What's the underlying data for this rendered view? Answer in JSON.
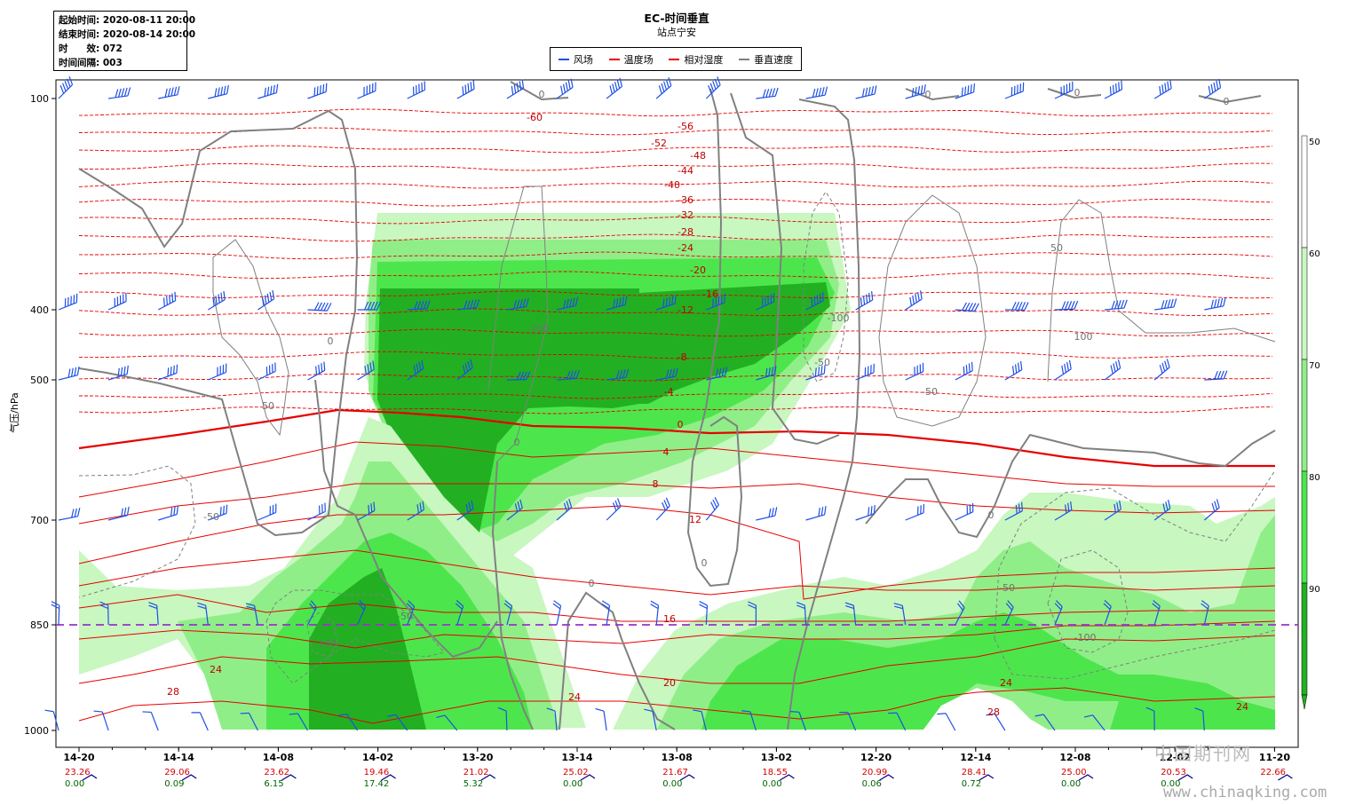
{
  "info": {
    "start": "起始时间: 2020-08-11 20:00",
    "end": "结束时间: 2020-08-14 20:00",
    "lead": "时　　效: 072",
    "interval": "时间间隔: 003"
  },
  "title": "EC-时间垂直",
  "subtitle": "站点宁安",
  "legend": [
    {
      "label": "风场",
      "color": "#1e50e6"
    },
    {
      "label": "温度场",
      "color": "#e60000"
    },
    {
      "label": "相对湿度",
      "color": "#e60000"
    },
    {
      "label": "垂直速度",
      "color": "#808080"
    }
  ],
  "watermark": "中国期刊网",
  "watermark_url": "www.chinaqking.com",
  "chart_data": {
    "type": "heatmap",
    "ylabel": "气压/hPa",
    "y_ticks": [
      100,
      400,
      500,
      700,
      850,
      1000
    ],
    "x_ticks": [
      "14-20",
      "14-14",
      "14-08",
      "14-02",
      "13-20",
      "13-14",
      "13-08",
      "13-02",
      "12-20",
      "12-14",
      "12-08",
      "12-02",
      "11-20"
    ],
    "surface_temp": [
      "23.26",
      "29.06",
      "23.62",
      "19.46",
      "21.02",
      "25.02",
      "21.67",
      "18.55",
      "20.99",
      "28.41",
      "25.00",
      "20.53",
      "22.66"
    ],
    "surface_precip": [
      "0.00",
      "0.09",
      "6.15",
      "17.42",
      "5.32",
      "0.00",
      "0.00",
      "0.00",
      "0.06",
      "0.72",
      "0.00",
      "0.00",
      ""
    ],
    "colorbar_ticks": [
      50,
      60,
      70,
      80,
      90
    ],
    "colorbar_colors": [
      "#ffffff",
      "#c8f7c0",
      "#90ee88",
      "#4ce64c",
      "#22b022"
    ],
    "temperature_labels": [
      "-60",
      "-56",
      "-52",
      "-48",
      "-44",
      "-40",
      "-36",
      "-32",
      "-28",
      "-24",
      "-20",
      "-16",
      "-12",
      "-8",
      "-4",
      "0",
      "4",
      "8",
      "12",
      "16",
      "20",
      "24",
      "24",
      "24",
      "28",
      "28",
      "24"
    ],
    "vertical_velocity_labels": [
      "0",
      "0",
      "0",
      "0",
      "0",
      "0",
      "0",
      "0",
      "0",
      "50",
      "50",
      "-50",
      "-50",
      "-50",
      "-50",
      "-50",
      "-100",
      "-100",
      "-100",
      "-100",
      "100"
    ],
    "reference_level": 850
  }
}
